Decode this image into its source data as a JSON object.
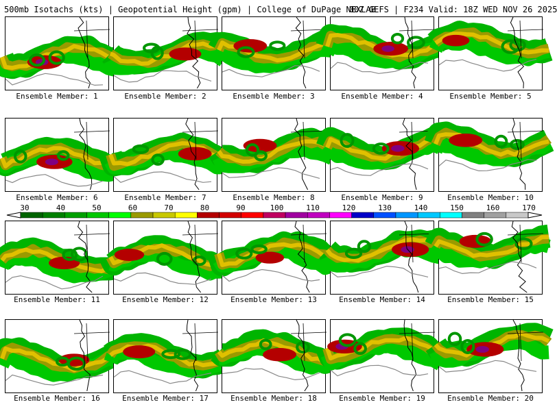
{
  "header": {
    "left": "500mb Isotachs (kts) | Geopotential Height (gpm) | College of DuPage NEXLAB",
    "right": "00Z GEFS | F234 Valid: 18Z WED NOV 26 2025"
  },
  "members": [
    {
      "label": "Ensemble Member: 1",
      "intensity": 0.85
    },
    {
      "label": "Ensemble Member: 2",
      "intensity": 0.75
    },
    {
      "label": "Ensemble Member: 3",
      "intensity": 0.8
    },
    {
      "label": "Ensemble Member: 4",
      "intensity": 0.85
    },
    {
      "label": "Ensemble Member: 5",
      "intensity": 0.55
    },
    {
      "label": "Ensemble Member: 6",
      "intensity": 0.9
    },
    {
      "label": "Ensemble Member: 7",
      "intensity": 0.8
    },
    {
      "label": "Ensemble Member: 8",
      "intensity": 0.8
    },
    {
      "label": "Ensemble Member: 9",
      "intensity": 0.95
    },
    {
      "label": "Ensemble Member: 10",
      "intensity": 0.8
    },
    {
      "label": "Ensemble Member: 11",
      "intensity": 0.7
    },
    {
      "label": "Ensemble Member: 12",
      "intensity": 0.65
    },
    {
      "label": "Ensemble Member: 13",
      "intensity": 0.6
    },
    {
      "label": "Ensemble Member: 14",
      "intensity": 0.95
    },
    {
      "label": "Ensemble Member: 15",
      "intensity": 0.75
    },
    {
      "label": "Ensemble Member: 16",
      "intensity": 0.7
    },
    {
      "label": "Ensemble Member: 17",
      "intensity": 0.75
    },
    {
      "label": "Ensemble Member: 18",
      "intensity": 0.8
    },
    {
      "label": "Ensemble Member: 19",
      "intensity": 0.85
    },
    {
      "label": "Ensemble Member: 20",
      "intensity": 0.95
    }
  ],
  "colorbar": {
    "labels": [
      "30",
      "40",
      "50",
      "60",
      "70",
      "80",
      "90",
      "100",
      "110",
      "120",
      "130",
      "140",
      "150",
      "160",
      "170"
    ],
    "colors": [
      "#006400",
      "#008000",
      "#00a000",
      "#00c800",
      "#00ff00",
      "#9a9a00",
      "#c8c800",
      "#ffff00",
      "#b40000",
      "#d20000",
      "#ff0000",
      "#c00060",
      "#a000a0",
      "#c000c0",
      "#ff00ff",
      "#0000c8",
      "#0050ff",
      "#0096ff",
      "#00c8ff",
      "#00ffff",
      "#808080",
      "#a0a0a0",
      "#c8c8c8"
    ]
  }
}
